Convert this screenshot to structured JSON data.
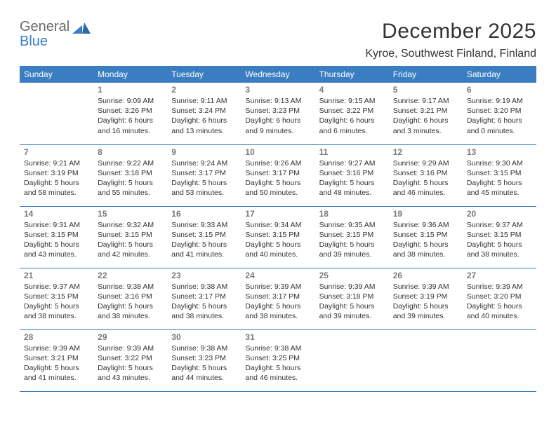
{
  "brand": {
    "part1": "General",
    "part2": "Blue"
  },
  "title": "December 2025",
  "location": "Kyroe, Southwest Finland, Finland",
  "colors": {
    "header_bg": "#3a7ec1",
    "header_fg": "#ffffff",
    "text": "#333333",
    "daynum": "#7a7a7a",
    "rule": "#3a7ec1",
    "page_bg": "#ffffff",
    "logo_gray": "#6a6a6a",
    "logo_blue": "#3a7ec1"
  },
  "typography": {
    "title_fontsize_pt": 22,
    "location_fontsize_pt": 12,
    "dayhead_fontsize_pt": 9,
    "cell_fontsize_pt": 8,
    "daynum_fontsize_pt": 9
  },
  "day_headers": [
    "Sunday",
    "Monday",
    "Tuesday",
    "Wednesday",
    "Thursday",
    "Friday",
    "Saturday"
  ],
  "weeks": [
    [
      null,
      {
        "n": "1",
        "sr": "9:09 AM",
        "ss": "3:26 PM",
        "dl": "6 hours and 16 minutes."
      },
      {
        "n": "2",
        "sr": "9:11 AM",
        "ss": "3:24 PM",
        "dl": "6 hours and 13 minutes."
      },
      {
        "n": "3",
        "sr": "9:13 AM",
        "ss": "3:23 PM",
        "dl": "6 hours and 9 minutes."
      },
      {
        "n": "4",
        "sr": "9:15 AM",
        "ss": "3:22 PM",
        "dl": "6 hours and 6 minutes."
      },
      {
        "n": "5",
        "sr": "9:17 AM",
        "ss": "3:21 PM",
        "dl": "6 hours and 3 minutes."
      },
      {
        "n": "6",
        "sr": "9:19 AM",
        "ss": "3:20 PM",
        "dl": "6 hours and 0 minutes."
      }
    ],
    [
      {
        "n": "7",
        "sr": "9:21 AM",
        "ss": "3:19 PM",
        "dl": "5 hours and 58 minutes."
      },
      {
        "n": "8",
        "sr": "9:22 AM",
        "ss": "3:18 PM",
        "dl": "5 hours and 55 minutes."
      },
      {
        "n": "9",
        "sr": "9:24 AM",
        "ss": "3:17 PM",
        "dl": "5 hours and 53 minutes."
      },
      {
        "n": "10",
        "sr": "9:26 AM",
        "ss": "3:17 PM",
        "dl": "5 hours and 50 minutes."
      },
      {
        "n": "11",
        "sr": "9:27 AM",
        "ss": "3:16 PM",
        "dl": "5 hours and 48 minutes."
      },
      {
        "n": "12",
        "sr": "9:29 AM",
        "ss": "3:16 PM",
        "dl": "5 hours and 46 minutes."
      },
      {
        "n": "13",
        "sr": "9:30 AM",
        "ss": "3:15 PM",
        "dl": "5 hours and 45 minutes."
      }
    ],
    [
      {
        "n": "14",
        "sr": "9:31 AM",
        "ss": "3:15 PM",
        "dl": "5 hours and 43 minutes."
      },
      {
        "n": "15",
        "sr": "9:32 AM",
        "ss": "3:15 PM",
        "dl": "5 hours and 42 minutes."
      },
      {
        "n": "16",
        "sr": "9:33 AM",
        "ss": "3:15 PM",
        "dl": "5 hours and 41 minutes."
      },
      {
        "n": "17",
        "sr": "9:34 AM",
        "ss": "3:15 PM",
        "dl": "5 hours and 40 minutes."
      },
      {
        "n": "18",
        "sr": "9:35 AM",
        "ss": "3:15 PM",
        "dl": "5 hours and 39 minutes."
      },
      {
        "n": "19",
        "sr": "9:36 AM",
        "ss": "3:15 PM",
        "dl": "5 hours and 38 minutes."
      },
      {
        "n": "20",
        "sr": "9:37 AM",
        "ss": "3:15 PM",
        "dl": "5 hours and 38 minutes."
      }
    ],
    [
      {
        "n": "21",
        "sr": "9:37 AM",
        "ss": "3:15 PM",
        "dl": "5 hours and 38 minutes."
      },
      {
        "n": "22",
        "sr": "9:38 AM",
        "ss": "3:16 PM",
        "dl": "5 hours and 38 minutes."
      },
      {
        "n": "23",
        "sr": "9:38 AM",
        "ss": "3:17 PM",
        "dl": "5 hours and 38 minutes."
      },
      {
        "n": "24",
        "sr": "9:39 AM",
        "ss": "3:17 PM",
        "dl": "5 hours and 38 minutes."
      },
      {
        "n": "25",
        "sr": "9:39 AM",
        "ss": "3:18 PM",
        "dl": "5 hours and 39 minutes."
      },
      {
        "n": "26",
        "sr": "9:39 AM",
        "ss": "3:19 PM",
        "dl": "5 hours and 39 minutes."
      },
      {
        "n": "27",
        "sr": "9:39 AM",
        "ss": "3:20 PM",
        "dl": "5 hours and 40 minutes."
      }
    ],
    [
      {
        "n": "28",
        "sr": "9:39 AM",
        "ss": "3:21 PM",
        "dl": "5 hours and 41 minutes."
      },
      {
        "n": "29",
        "sr": "9:39 AM",
        "ss": "3:22 PM",
        "dl": "5 hours and 43 minutes."
      },
      {
        "n": "30",
        "sr": "9:38 AM",
        "ss": "3:23 PM",
        "dl": "5 hours and 44 minutes."
      },
      {
        "n": "31",
        "sr": "9:38 AM",
        "ss": "3:25 PM",
        "dl": "5 hours and 46 minutes."
      },
      null,
      null,
      null
    ]
  ],
  "labels": {
    "sunrise_prefix": "Sunrise: ",
    "sunset_prefix": "Sunset: ",
    "daylight_prefix": "Daylight: "
  }
}
